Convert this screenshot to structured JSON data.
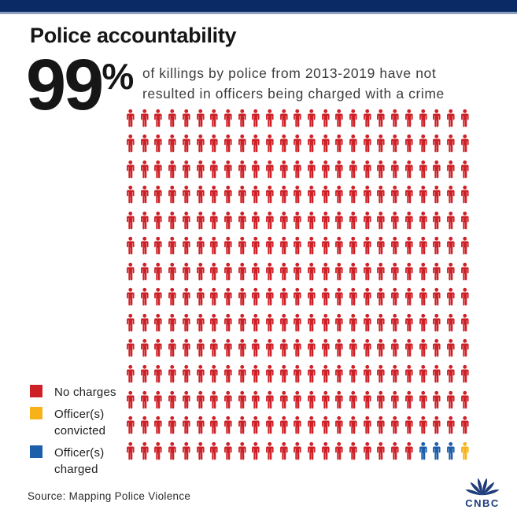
{
  "colors": {
    "top_bar": "#0A2A66",
    "top_bar_accent": "#8CA0BC",
    "title_text": "#161616",
    "subtitle_text": "#3C3C3C",
    "legend_text": "#1E1E1E",
    "source_text": "#2B2B2B",
    "cnbc_navy": "#1E3D7B",
    "no_charges_red": "#CE2127",
    "charged_blue": "#1C5EA9",
    "convicted_yellow": "#F7B219"
  },
  "header": {
    "title": "Police accountability"
  },
  "stat": {
    "value": "99",
    "percent_sign": "%",
    "description_line1": "of killings by police from 2013-2019 have not",
    "description_line2": "resulted in officers being charged with a crime"
  },
  "chart_data": {
    "type": "pictogram",
    "title": "Police accountability",
    "stat_headline": "99% of killings by police from 2013-2019 have not resulted in officers being charged with a crime",
    "unit": "person-icon",
    "grid": {
      "rows": 14,
      "columns": 25,
      "total_icons": 350,
      "fill_order": "row-major"
    },
    "categories": [
      "No charges",
      "Officer(s) charged",
      "Officer(s) convicted"
    ],
    "values": [
      346,
      3,
      1
    ],
    "series": [
      {
        "name": "No charges",
        "icon_count": 346,
        "color": "#CE2127"
      },
      {
        "name": "Officer(s) charged",
        "icon_count": 3,
        "color": "#1C5EA9"
      },
      {
        "name": "Officer(s) convicted",
        "icon_count": 1,
        "color": "#F7B219"
      }
    ],
    "legend_position": "bottom-left",
    "source": "Mapping Police Violence"
  },
  "legend": {
    "items": [
      {
        "label": "No charges",
        "color": "#CE2127"
      },
      {
        "label": "Officer(s)\nconvicted",
        "color": "#F7B219"
      },
      {
        "label": "Officer(s)\ncharged",
        "color": "#1C5EA9"
      }
    ]
  },
  "footer": {
    "source": "Source: Mapping Police Violence",
    "logo_text": "CNBC"
  }
}
